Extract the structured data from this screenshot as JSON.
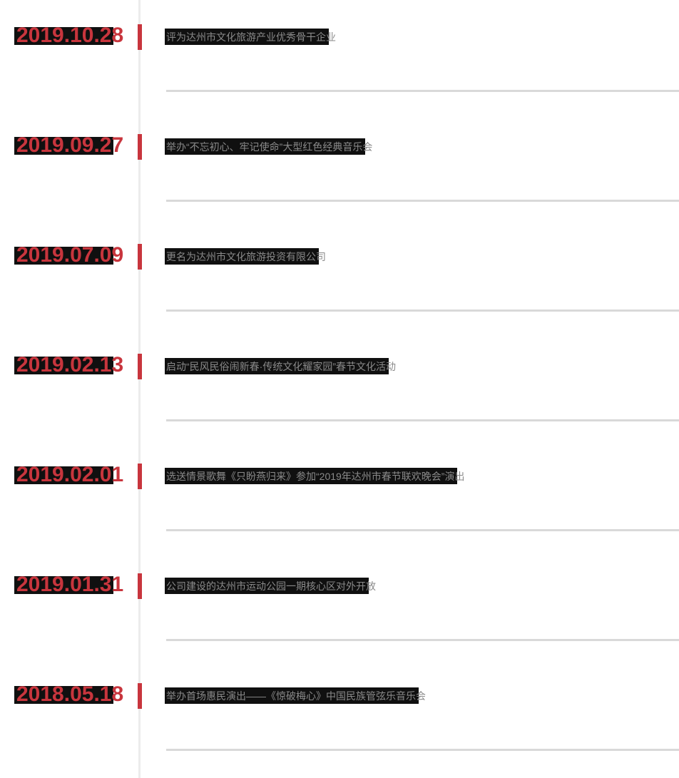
{
  "page": {
    "background": "#ffffff",
    "kind": "company-development-history-timeline"
  },
  "colors": {
    "accent_red": "#c8353d",
    "axis_line": "#ececec",
    "divider": "#d9d9d9",
    "event_text_gray": "#8a8a8a",
    "highlight_band_black": "#101010"
  },
  "timeline": {
    "items": [
      {
        "date": "2019.10.28",
        "text": "评为达州市文化旅游产业优秀骨干企业"
      },
      {
        "date": "2019.09.27",
        "text": "举办“不忘初心、牢记使命”大型红色经典音乐会"
      },
      {
        "date": "2019.07.09",
        "text": "更名为达州市文化旅游投资有限公司"
      },
      {
        "date": "2019.02.13",
        "text": "启动“民风民俗闹新春·传统文化耀家园”春节文化活动"
      },
      {
        "date": "2019.02.01",
        "text": "选送情景歌舞《只盼燕归来》参加“2019年达州市春节联欢晚会”演出"
      },
      {
        "date": "2019.01.31",
        "text": "公司建设的达州市运动公园一期核心区对外开放"
      },
      {
        "date": "2018.05.18",
        "text": "举办首场惠民演出——《惊破梅心》中国民族管弦乐音乐会"
      }
    ]
  }
}
